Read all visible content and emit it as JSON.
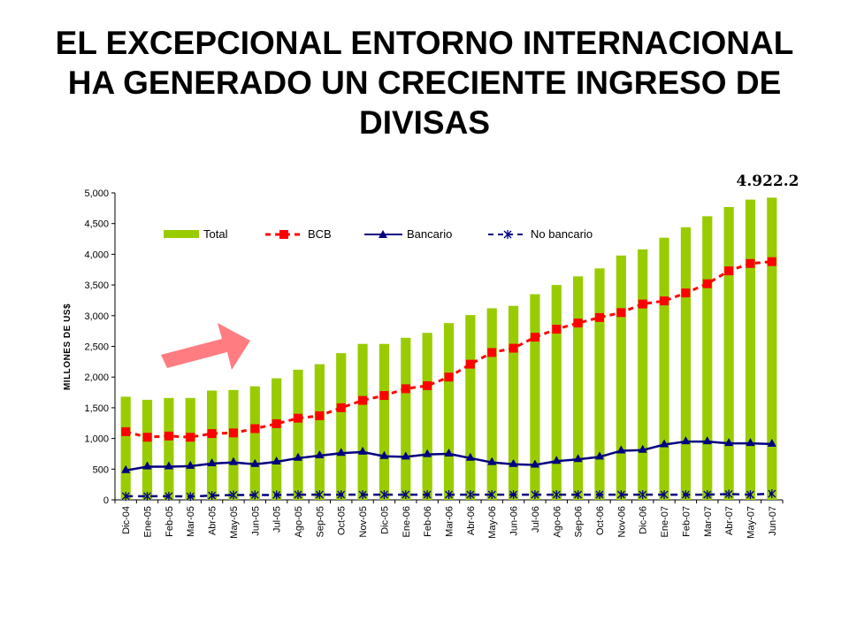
{
  "title": {
    "line1": "EL EXCEPCIONAL ENTORNO INTERNACIONAL",
    "line2": "HA GENERADO UN CRECIENTE INGRESO DE",
    "line3": "DIVISAS"
  },
  "colors": {
    "total": "#99CC00",
    "bcb": "#FF0000",
    "bancario": "#000080",
    "no_bancario": "#000080",
    "arrow": "#FF7C80"
  },
  "chart_data": {
    "type": "bar",
    "ylabel": "MILLONES DE US$",
    "ylim": [
      0,
      5000
    ],
    "yticks": [
      0,
      500,
      1000,
      1500,
      2000,
      2500,
      3000,
      3500,
      4000,
      4500,
      5000
    ],
    "ytick_labels": [
      "0",
      "500",
      "1,000",
      "1,500",
      "2,000",
      "2,500",
      "3,000",
      "3,500",
      "4,000",
      "4,500",
      "5,000"
    ],
    "categories": [
      "Dic-04",
      "Ene-05",
      "Feb-05",
      "Mar-05",
      "Abr-05",
      "May-05",
      "Jun-05",
      "Jul-05",
      "Ago-05",
      "Sep-05",
      "Oct-05",
      "Nov-05",
      "Dic-05",
      "Ene-06",
      "Feb-06",
      "Mar-06",
      "Abr-06",
      "May-06",
      "Jun-06",
      "Jul-06",
      "Ago-06",
      "Sep-06",
      "Oct-06",
      "Nov-06",
      "Dic-06",
      "Ene-07",
      "Feb-07",
      "Mar-07",
      "Abr-07",
      "May-07",
      "Jun-07"
    ],
    "series": [
      {
        "name": "Total",
        "type": "bar",
        "values": [
          1680,
          1630,
          1660,
          1660,
          1780,
          1790,
          1850,
          1980,
          2120,
          2210,
          2390,
          2540,
          2540,
          2640,
          2720,
          2880,
          3010,
          3120,
          3160,
          3350,
          3500,
          3640,
          3770,
          3980,
          4080,
          4270,
          4440,
          4620,
          4770,
          4890,
          4922.2
        ]
      },
      {
        "name": "BCB",
        "type": "line",
        "values": [
          1110,
          1020,
          1040,
          1020,
          1080,
          1090,
          1160,
          1240,
          1330,
          1370,
          1500,
          1620,
          1700,
          1810,
          1860,
          2000,
          2210,
          2400,
          2470,
          2650,
          2780,
          2880,
          2970,
          3050,
          3190,
          3240,
          3370,
          3520,
          3730,
          3850,
          3880
        ]
      },
      {
        "name": "Bancario",
        "type": "line",
        "values": [
          480,
          540,
          540,
          550,
          590,
          610,
          580,
          620,
          680,
          720,
          760,
          780,
          710,
          700,
          740,
          750,
          680,
          610,
          580,
          570,
          630,
          660,
          700,
          800,
          810,
          900,
          950,
          950,
          920,
          920,
          910
        ]
      },
      {
        "name": "No bancario",
        "type": "line",
        "values": [
          60,
          60,
          60,
          55,
          70,
          80,
          80,
          80,
          85,
          85,
          85,
          85,
          85,
          85,
          85,
          85,
          85,
          85,
          85,
          85,
          85,
          85,
          85,
          85,
          85,
          85,
          85,
          85,
          95,
          85,
          100
        ]
      }
    ],
    "annotation": "4.922.2",
    "legend": [
      "Total",
      "BCB",
      "Bancario",
      "No bancario"
    ],
    "legend_position": "top",
    "grid": false
  }
}
